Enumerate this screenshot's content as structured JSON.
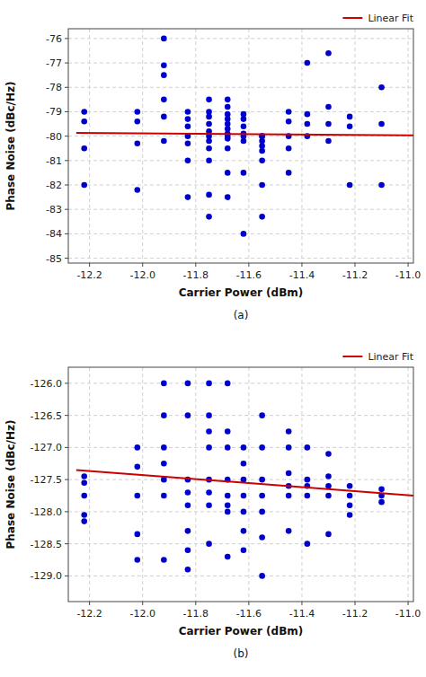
{
  "chart_data": [
    {
      "type": "scatter",
      "title": "(a)",
      "xlabel": "Carrier Power (dBm)",
      "ylabel": "Phase Noise (dBc/Hz)",
      "xlim": [
        -12.28,
        -10.98
      ],
      "ylim": [
        -85.2,
        -75.6
      ],
      "xticks": [
        -12.2,
        {
          "value": -12.0,
          "label": "-12.0"
        },
        -11.8,
        -11.6,
        -11.4,
        -11.2,
        {
          "value": -11.0,
          "label": "-11.0"
        }
      ],
      "yticks": [
        -85,
        -84,
        -83,
        -82,
        -81,
        -80,
        -79,
        -78,
        -77,
        -76
      ],
      "grid": true,
      "legend": "upper right",
      "series": [
        {
          "type": "scatter",
          "color": "#0000CC",
          "x": [
            -12.22,
            -12.22,
            -12.22,
            -12.22,
            -12.02,
            -12.02,
            -12.02,
            -12.02,
            -11.92,
            -11.92,
            -11.92,
            -11.92,
            -11.92,
            -11.92,
            -11.83,
            -11.83,
            -11.83,
            -11.83,
            -11.83,
            -11.83,
            -11.83,
            -11.75,
            -11.75,
            -11.75,
            -11.75,
            -11.75,
            -11.75,
            -11.75,
            -11.75,
            -11.75,
            -11.75,
            -11.75,
            -11.68,
            -11.68,
            -11.68,
            -11.68,
            -11.68,
            -11.68,
            -11.68,
            -11.68,
            -11.68,
            -11.68,
            -11.68,
            -11.68,
            -11.62,
            -11.62,
            -11.62,
            -11.62,
            -11.62,
            -11.62,
            -11.62,
            -11.62,
            -11.55,
            -11.55,
            -11.55,
            -11.55,
            -11.55,
            -11.55,
            -11.55,
            -11.55,
            -11.45,
            -11.45,
            -11.45,
            -11.45,
            -11.45,
            -11.38,
            -11.38,
            -11.38,
            -11.38,
            -11.3,
            -11.3,
            -11.3,
            -11.3,
            -11.22,
            -11.22,
            -11.22,
            -11.1,
            -11.1,
            -11.1
          ],
          "values": [
            -79.0,
            -79.4,
            -80.5,
            -82.0,
            -79.0,
            -79.4,
            -80.3,
            -82.2,
            -76.0,
            -77.1,
            -77.5,
            -78.5,
            -79.2,
            -80.2,
            -79.0,
            -79.3,
            -79.6,
            -80.0,
            -80.3,
            -81.0,
            -82.5,
            -78.5,
            -79.0,
            -79.2,
            -79.5,
            -79.8,
            -80.0,
            -80.2,
            -80.5,
            -81.0,
            -82.4,
            -83.3,
            -78.5,
            -78.8,
            -79.1,
            -79.3,
            -79.5,
            -79.7,
            -79.9,
            -80.0,
            -80.1,
            -80.5,
            -81.5,
            -82.5,
            -79.1,
            -79.3,
            -79.6,
            -79.9,
            -80.0,
            -80.2,
            -81.5,
            -84.0,
            -80.0,
            -80.0,
            -80.2,
            -80.4,
            -80.6,
            -81.0,
            -82.0,
            -83.3,
            -79.0,
            -79.4,
            -80.0,
            -80.5,
            -81.5,
            -77.0,
            -79.1,
            -79.5,
            -80.0,
            -76.6,
            -78.8,
            -79.5,
            -80.2,
            -79.2,
            -79.6,
            -82.0,
            -78.0,
            -79.5,
            -82.0
          ]
        },
        {
          "type": "line",
          "name": "Linear Fit",
          "color": "#CC0000",
          "x": [
            -12.25,
            -10.98
          ],
          "values": [
            -79.87,
            -79.97
          ]
        }
      ]
    },
    {
      "type": "scatter",
      "title": "(b)",
      "xlabel": "Carrier Power (dBm)",
      "ylabel": "Phase Noise (dBc/Hz)",
      "xlim": [
        -12.28,
        -10.98
      ],
      "ylim": [
        -129.4,
        -125.75
      ],
      "xticks": [
        -12.2,
        {
          "value": -12.0,
          "label": "-12.0"
        },
        -11.8,
        -11.6,
        -11.4,
        -11.2,
        {
          "value": -11.0,
          "label": "-11.0"
        }
      ],
      "yticks": [
        {
          "value": -129.0,
          "label": "-129.0"
        },
        -128.5,
        {
          "value": -128.0,
          "label": "-128.0"
        },
        -127.5,
        {
          "value": -127.0,
          "label": "-127.0"
        },
        -126.5,
        {
          "value": -126.0,
          "label": "-126.0"
        }
      ],
      "grid": true,
      "legend": "upper right",
      "series": [
        {
          "type": "scatter",
          "color": "#0000CC",
          "x": [
            -12.22,
            -12.22,
            -12.22,
            -12.22,
            -12.22,
            -12.02,
            -12.02,
            -12.02,
            -12.02,
            -12.02,
            -11.92,
            -11.92,
            -11.92,
            -11.92,
            -11.92,
            -11.92,
            -11.92,
            -11.83,
            -11.83,
            -11.83,
            -11.83,
            -11.83,
            -11.83,
            -11.83,
            -11.83,
            -11.75,
            -11.75,
            -11.75,
            -11.75,
            -11.75,
            -11.75,
            -11.75,
            -11.75,
            -11.68,
            -11.68,
            -11.68,
            -11.68,
            -11.68,
            -11.68,
            -11.68,
            -11.68,
            -11.62,
            -11.62,
            -11.62,
            -11.62,
            -11.62,
            -11.62,
            -11.62,
            -11.55,
            -11.55,
            -11.55,
            -11.55,
            -11.55,
            -11.55,
            -11.55,
            -11.45,
            -11.45,
            -11.45,
            -11.45,
            -11.45,
            -11.45,
            -11.38,
            -11.38,
            -11.38,
            -11.38,
            -11.38,
            -11.3,
            -11.3,
            -11.3,
            -11.3,
            -11.3,
            -11.22,
            -11.22,
            -11.22,
            -11.22,
            -11.1,
            -11.1,
            -11.1
          ],
          "values": [
            -127.45,
            -127.55,
            -127.75,
            -128.05,
            -128.15,
            -127.0,
            -127.3,
            -127.75,
            -128.35,
            -128.75,
            -126.0,
            -126.5,
            -127.0,
            -127.25,
            -127.5,
            -127.75,
            -128.75,
            -126.0,
            -126.5,
            -127.5,
            -127.7,
            -127.9,
            -128.3,
            -128.6,
            -128.9,
            -126.0,
            -126.5,
            -126.75,
            -127.0,
            -127.5,
            -127.7,
            -127.9,
            -128.5,
            -126.0,
            -126.75,
            -127.0,
            -127.5,
            -127.75,
            -127.9,
            -128.0,
            -128.7,
            -127.0,
            -127.25,
            -127.5,
            -127.75,
            -128.0,
            -128.3,
            -128.6,
            -126.5,
            -127.0,
            -127.5,
            -127.75,
            -128.0,
            -128.4,
            -129.0,
            -126.75,
            -127.0,
            -127.4,
            -127.6,
            -127.75,
            -128.3,
            -127.0,
            -127.5,
            -127.6,
            -127.75,
            -128.5,
            -127.1,
            -127.45,
            -127.6,
            -127.75,
            -128.35,
            -127.6,
            -127.75,
            -127.9,
            -128.05,
            -127.65,
            -127.75,
            -127.85
          ]
        },
        {
          "type": "line",
          "name": "Linear Fit",
          "color": "#CC0000",
          "x": [
            -12.25,
            -10.98
          ],
          "values": [
            -127.35,
            -127.75
          ]
        }
      ]
    }
  ]
}
